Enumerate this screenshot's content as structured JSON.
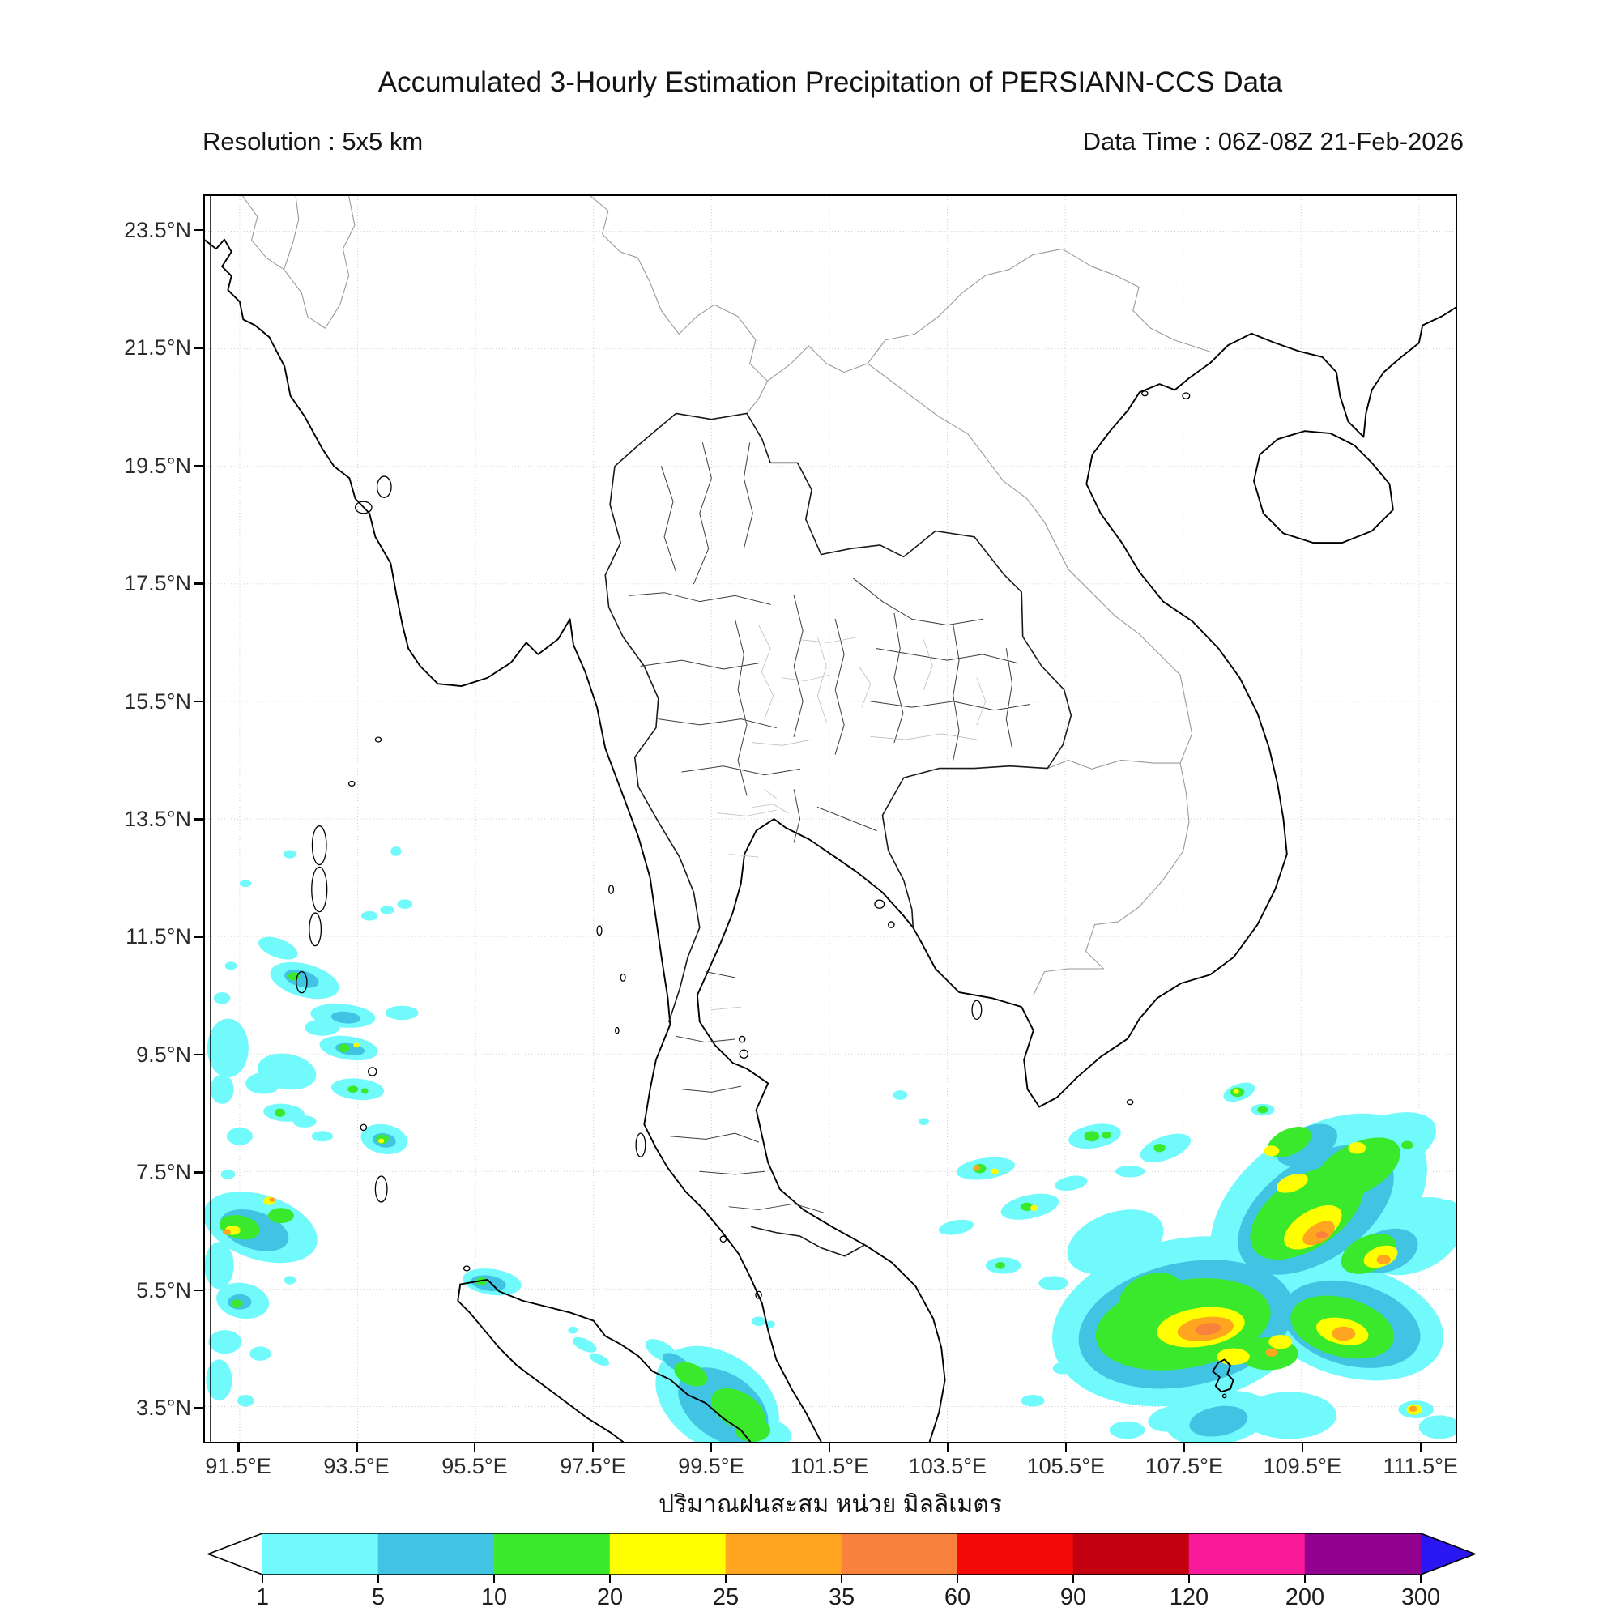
{
  "header": {
    "title": "Accumulated 3-Hourly Estimation Precipitation of PERSIANN-CCS Data",
    "resolution_label": "Resolution : 5x5 km",
    "data_time_label": "Data Time : 06Z-08Z 21-Feb-2026"
  },
  "axes": {
    "x_tick_labels": [
      "91.5°E",
      "93.5°E",
      "95.5°E",
      "97.5°E",
      "99.5°E",
      "101.5°E",
      "103.5°E",
      "105.5°E",
      "107.5°E",
      "109.5°E",
      "111.5°E"
    ],
    "y_tick_labels": [
      "23.5°N",
      "21.5°N",
      "19.5°N",
      "17.5°N",
      "15.5°N",
      "13.5°N",
      "11.5°N",
      "9.5°N",
      "7.5°N",
      "5.5°N",
      "3.5°N"
    ],
    "xlabel_thai": "ปริมาณฝนสะสม หน่วย มิลลิเมตร"
  },
  "colorbar": {
    "tick_labels": [
      "1",
      "5",
      "10",
      "20",
      "25",
      "35",
      "60",
      "90",
      "120",
      "200",
      "300"
    ],
    "segment_colors": [
      "#70FAFC",
      "#41C4E4",
      "#3BE92C",
      "#FFFF00",
      "#FFA51F",
      "#F9823C",
      "#F50A0A",
      "#C2000F",
      "#F9199B",
      "#91008F"
    ],
    "under_arrow_color": "#FFFFFF",
    "over_arrow_color": "#2A16F2"
  },
  "chart_data": {
    "type": "map",
    "region": "Thailand / Indochina / Andaman Sea / Gulf of Thailand / South China Sea",
    "extent": {
      "lon_min": 90.91,
      "lon_max": 112.12,
      "lat_min": 2.9,
      "lat_max": 24.1
    },
    "grid_interval_deg": 2,
    "precip_levels_mm": [
      1,
      5,
      10,
      20,
      25,
      35,
      60,
      90,
      120,
      200,
      300
    ],
    "patch_format": [
      "lon_deg",
      "lat_deg",
      "rx_deg",
      "ry_deg",
      "rotation_deg_ccw",
      "level_index_1based"
    ],
    "precip_patches": [
      [
        109.8,
        6.9,
        2.05,
        1.3,
        35,
        1
      ],
      [
        107.5,
        4.95,
        2.25,
        1.4,
        12,
        1
      ],
      [
        110.35,
        4.95,
        1.6,
        0.95,
        -15,
        1
      ],
      [
        106.35,
        6.3,
        0.85,
        0.5,
        20,
        1
      ],
      [
        111.4,
        6.4,
        0.9,
        0.6,
        25,
        1
      ],
      [
        110.8,
        7.9,
        1.05,
        0.5,
        22,
        1
      ],
      [
        108.1,
        3.3,
        0.9,
        0.45,
        10,
        1
      ],
      [
        109.3,
        3.35,
        0.8,
        0.4,
        0,
        1
      ],
      [
        109.75,
        6.85,
        1.5,
        0.85,
        35,
        2
      ],
      [
        107.55,
        4.9,
        1.85,
        1.05,
        12,
        2
      ],
      [
        110.35,
        4.9,
        1.2,
        0.7,
        -15,
        2
      ],
      [
        110.95,
        6.15,
        0.55,
        0.35,
        20,
        2
      ],
      [
        108.1,
        3.25,
        0.5,
        0.25,
        10,
        2
      ],
      [
        109.6,
        7.95,
        0.55,
        0.3,
        25,
        2
      ],
      [
        109.6,
        6.8,
        1.1,
        0.6,
        35,
        3
      ],
      [
        110.45,
        7.55,
        0.8,
        0.42,
        28,
        3
      ],
      [
        107.5,
        4.9,
        1.5,
        0.75,
        10,
        3
      ],
      [
        106.95,
        5.4,
        0.55,
        0.35,
        20,
        3
      ],
      [
        110.2,
        4.85,
        0.9,
        0.5,
        -15,
        3
      ],
      [
        108.95,
        4.4,
        0.5,
        0.28,
        0,
        3
      ],
      [
        110.65,
        6.1,
        0.5,
        0.3,
        25,
        3
      ],
      [
        109.3,
        8.0,
        0.4,
        0.22,
        25,
        3
      ],
      [
        109.7,
        6.55,
        0.55,
        0.28,
        32,
        4
      ],
      [
        107.8,
        4.85,
        0.75,
        0.33,
        8,
        4
      ],
      [
        110.2,
        4.78,
        0.45,
        0.22,
        -12,
        4
      ],
      [
        109.35,
        7.3,
        0.28,
        0.14,
        20,
        4
      ],
      [
        110.85,
        6.05,
        0.3,
        0.17,
        20,
        4
      ],
      [
        108.35,
        4.35,
        0.28,
        0.14,
        0,
        4
      ],
      [
        110.45,
        7.9,
        0.15,
        0.1,
        0,
        4
      ],
      [
        109.0,
        7.85,
        0.13,
        0.09,
        0,
        4
      ],
      [
        109.15,
        4.6,
        0.2,
        0.12,
        0,
        4
      ],
      [
        109.8,
        6.45,
        0.3,
        0.16,
        30,
        5
      ],
      [
        107.88,
        4.82,
        0.48,
        0.2,
        8,
        5
      ],
      [
        110.22,
        4.74,
        0.2,
        0.12,
        0,
        5
      ],
      [
        110.9,
        6.0,
        0.12,
        0.08,
        0,
        5
      ],
      [
        109.0,
        4.42,
        0.1,
        0.07,
        0,
        5
      ],
      [
        107.92,
        4.82,
        0.22,
        0.1,
        8,
        6
      ],
      [
        109.85,
        6.42,
        0.1,
        0.06,
        0,
        6
      ],
      [
        106.0,
        8.1,
        0.45,
        0.2,
        10,
        1
      ],
      [
        105.95,
        8.1,
        0.13,
        0.09,
        0,
        3
      ],
      [
        106.2,
        8.12,
        0.08,
        0.06,
        0,
        3
      ],
      [
        104.15,
        7.55,
        0.5,
        0.18,
        8,
        1
      ],
      [
        104.05,
        7.55,
        0.11,
        0.08,
        0,
        3
      ],
      [
        104.0,
        7.56,
        0.06,
        0.05,
        0,
        5
      ],
      [
        104.3,
        7.5,
        0.07,
        0.05,
        0,
        4
      ],
      [
        104.9,
        6.9,
        0.5,
        0.2,
        12,
        1
      ],
      [
        104.85,
        6.9,
        0.11,
        0.07,
        0,
        3
      ],
      [
        104.97,
        6.88,
        0.06,
        0.05,
        0,
        4
      ],
      [
        103.65,
        6.55,
        0.3,
        0.12,
        10,
        1
      ],
      [
        105.6,
        7.3,
        0.28,
        0.12,
        10,
        1
      ],
      [
        106.6,
        7.5,
        0.25,
        0.1,
        0,
        1
      ],
      [
        104.45,
        5.9,
        0.3,
        0.14,
        0,
        1
      ],
      [
        104.4,
        5.9,
        0.08,
        0.06,
        0,
        3
      ],
      [
        105.3,
        5.6,
        0.25,
        0.12,
        0,
        1
      ],
      [
        107.2,
        7.9,
        0.45,
        0.2,
        20,
        1
      ],
      [
        107.1,
        7.9,
        0.1,
        0.07,
        0,
        3
      ],
      [
        108.45,
        8.85,
        0.28,
        0.14,
        20,
        1
      ],
      [
        108.42,
        8.85,
        0.12,
        0.08,
        0,
        3
      ],
      [
        108.4,
        8.86,
        0.05,
        0.04,
        0,
        4
      ],
      [
        108.85,
        8.55,
        0.2,
        0.1,
        0,
        1
      ],
      [
        108.85,
        8.55,
        0.09,
        0.06,
        0,
        3
      ],
      [
        111.35,
        7.95,
        0.25,
        0.12,
        0,
        1
      ],
      [
        111.3,
        7.95,
        0.1,
        0.07,
        0,
        3
      ],
      [
        111.95,
        6.9,
        0.2,
        0.12,
        0,
        1
      ],
      [
        111.45,
        3.45,
        0.3,
        0.15,
        0,
        1
      ],
      [
        111.42,
        3.45,
        0.13,
        0.09,
        0,
        4
      ],
      [
        111.4,
        3.46,
        0.07,
        0.05,
        0,
        5
      ],
      [
        111.85,
        3.15,
        0.35,
        0.2,
        0,
        1
      ],
      [
        105.45,
        4.15,
        0.16,
        0.1,
        0,
        1
      ],
      [
        104.95,
        3.6,
        0.2,
        0.1,
        0,
        1
      ],
      [
        106.55,
        3.1,
        0.3,
        0.15,
        0,
        1
      ],
      [
        107.35,
        3.3,
        0.45,
        0.22,
        10,
        1
      ],
      [
        102.7,
        8.8,
        0.12,
        0.08,
        0,
        1
      ],
      [
        103.1,
        8.35,
        0.09,
        0.06,
        0,
        1
      ],
      [
        92.6,
        10.75,
        0.6,
        0.28,
        -15,
        1
      ],
      [
        92.55,
        10.78,
        0.3,
        0.14,
        -15,
        2
      ],
      [
        92.42,
        10.82,
        0.1,
        0.07,
        0,
        3
      ],
      [
        92.15,
        11.3,
        0.35,
        0.16,
        -20,
        1
      ],
      [
        93.7,
        11.85,
        0.14,
        0.08,
        0,
        1
      ],
      [
        94.0,
        11.95,
        0.12,
        0.07,
        0,
        1
      ],
      [
        94.3,
        12.05,
        0.13,
        0.08,
        0,
        1
      ],
      [
        92.35,
        12.9,
        0.11,
        0.07,
        0,
        1
      ],
      [
        91.6,
        12.4,
        0.1,
        0.06,
        0,
        1
      ],
      [
        94.15,
        12.95,
        0.09,
        0.08,
        0,
        1
      ],
      [
        93.25,
        10.15,
        0.55,
        0.2,
        -5,
        1
      ],
      [
        93.3,
        10.12,
        0.25,
        0.1,
        -5,
        2
      ],
      [
        94.25,
        10.2,
        0.28,
        0.12,
        0,
        1
      ],
      [
        92.9,
        9.95,
        0.3,
        0.14,
        0,
        1
      ],
      [
        93.35,
        9.6,
        0.5,
        0.2,
        -8,
        1
      ],
      [
        93.37,
        9.58,
        0.25,
        0.1,
        -8,
        2
      ],
      [
        93.27,
        9.6,
        0.1,
        0.07,
        0,
        3
      ],
      [
        93.48,
        9.65,
        0.05,
        0.04,
        0,
        4
      ],
      [
        93.5,
        8.9,
        0.45,
        0.18,
        -5,
        1
      ],
      [
        93.42,
        8.9,
        0.09,
        0.06,
        0,
        3
      ],
      [
        93.62,
        8.87,
        0.06,
        0.05,
        0,
        3
      ],
      [
        92.3,
        9.2,
        0.5,
        0.3,
        -10,
        1
      ],
      [
        91.9,
        9.0,
        0.3,
        0.18,
        0,
        1
      ],
      [
        91.3,
        9.6,
        0.35,
        0.5,
        0,
        1
      ],
      [
        91.2,
        8.9,
        0.2,
        0.25,
        0,
        1
      ],
      [
        92.25,
        8.5,
        0.35,
        0.15,
        -5,
        1
      ],
      [
        92.18,
        8.5,
        0.09,
        0.07,
        0,
        3
      ],
      [
        92.6,
        8.35,
        0.2,
        0.1,
        0,
        1
      ],
      [
        91.5,
        8.1,
        0.22,
        0.15,
        0,
        1
      ],
      [
        92.9,
        8.1,
        0.18,
        0.09,
        0,
        1
      ],
      [
        93.95,
        8.05,
        0.4,
        0.25,
        -10,
        1
      ],
      [
        93.95,
        8.03,
        0.2,
        0.12,
        -10,
        2
      ],
      [
        93.92,
        8.05,
        0.11,
        0.08,
        0,
        3
      ],
      [
        93.9,
        8.02,
        0.05,
        0.04,
        0,
        4
      ],
      [
        91.2,
        10.45,
        0.14,
        0.1,
        0,
        1
      ],
      [
        91.35,
        11.0,
        0.1,
        0.07,
        0,
        1
      ],
      [
        91.3,
        7.45,
        0.12,
        0.08,
        0,
        1
      ],
      [
        91.85,
        6.55,
        1.0,
        0.55,
        -18,
        1
      ],
      [
        91.75,
        6.5,
        0.6,
        0.32,
        -18,
        2
      ],
      [
        91.5,
        6.55,
        0.35,
        0.2,
        -12,
        3
      ],
      [
        92.2,
        6.75,
        0.22,
        0.13,
        0,
        3
      ],
      [
        91.38,
        6.5,
        0.13,
        0.08,
        0,
        4
      ],
      [
        91.28,
        6.47,
        0.07,
        0.05,
        0,
        5
      ],
      [
        92.0,
        7.0,
        0.1,
        0.07,
        0,
        4
      ],
      [
        92.05,
        7.02,
        0.05,
        0.04,
        0,
        5
      ],
      [
        91.15,
        5.9,
        0.25,
        0.4,
        0,
        1
      ],
      [
        91.55,
        5.3,
        0.45,
        0.3,
        -10,
        1
      ],
      [
        91.5,
        5.28,
        0.2,
        0.13,
        0,
        2
      ],
      [
        91.45,
        5.25,
        0.1,
        0.07,
        0,
        3
      ],
      [
        91.25,
        4.6,
        0.28,
        0.2,
        0,
        1
      ],
      [
        91.85,
        4.4,
        0.18,
        0.12,
        0,
        1
      ],
      [
        91.15,
        3.95,
        0.22,
        0.35,
        0,
        1
      ],
      [
        91.6,
        3.6,
        0.14,
        0.1,
        0,
        1
      ],
      [
        92.35,
        5.65,
        0.1,
        0.07,
        0,
        1
      ],
      [
        95.78,
        5.62,
        0.5,
        0.22,
        -8,
        1
      ],
      [
        95.72,
        5.6,
        0.3,
        0.13,
        -8,
        2
      ],
      [
        95.6,
        5.63,
        0.09,
        0.07,
        0,
        3
      ],
      [
        97.35,
        4.55,
        0.22,
        0.1,
        -25,
        1
      ],
      [
        97.6,
        4.3,
        0.18,
        0.08,
        -25,
        1
      ],
      [
        97.15,
        4.8,
        0.08,
        0.06,
        0,
        1
      ],
      [
        99.6,
        3.6,
        1.15,
        0.8,
        -35,
        1
      ],
      [
        99.7,
        3.5,
        0.85,
        0.55,
        -35,
        2
      ],
      [
        99.95,
        3.45,
        0.5,
        0.3,
        -30,
        3
      ],
      [
        99.15,
        4.05,
        0.3,
        0.18,
        -25,
        3
      ],
      [
        98.9,
        4.25,
        0.25,
        0.12,
        -30,
        2
      ],
      [
        98.65,
        4.45,
        0.3,
        0.15,
        -30,
        1
      ],
      [
        100.2,
        3.1,
        0.3,
        0.2,
        0,
        3
      ],
      [
        100.35,
        3.0,
        0.5,
        0.3,
        0,
        1
      ],
      [
        100.3,
        4.95,
        0.12,
        0.08,
        0,
        1
      ],
      [
        100.5,
        4.9,
        0.08,
        0.06,
        0,
        1
      ]
    ]
  }
}
